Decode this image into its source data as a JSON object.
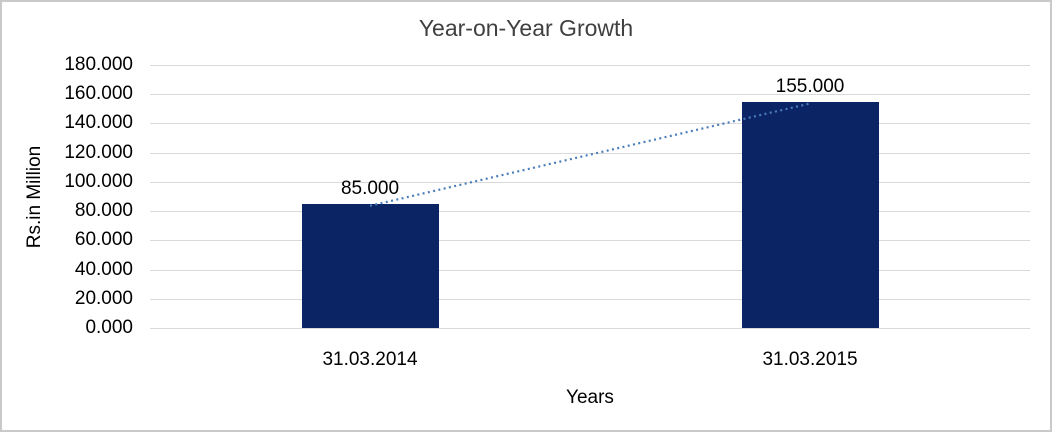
{
  "chart": {
    "title": "Year-on-Year Growth",
    "y_axis_title": "Rs.in Million",
    "x_axis_title": "Years"
  },
  "chart_data": {
    "type": "bar",
    "title": "Year-on-Year Growth",
    "xlabel": "Years",
    "ylabel": "Rs.in Million",
    "categories": [
      "31.03.2014",
      "31.03.2015"
    ],
    "values": [
      85,
      155
    ],
    "data_labels": [
      "85.000",
      "155.000"
    ],
    "ylim": [
      0,
      180
    ],
    "ytick_step": 20,
    "ytick_labels": [
      "180.000",
      "160.000",
      "140.000",
      "120.000",
      "100.000",
      "80.000",
      "60.000",
      "40.000",
      "20.000",
      "0.000"
    ],
    "grid": true,
    "legend": false,
    "trendline": {
      "type": "linear",
      "style": "dotted",
      "connects_values": [
        85,
        155
      ]
    }
  },
  "colors": {
    "bar": "#0b2464",
    "trendline": "#4a7ebb",
    "gridline": "#d9d9d9",
    "frame_border": "#c9c9c9",
    "background": "#ffffff",
    "title_text": "#404040",
    "axis_text": "#000000"
  }
}
